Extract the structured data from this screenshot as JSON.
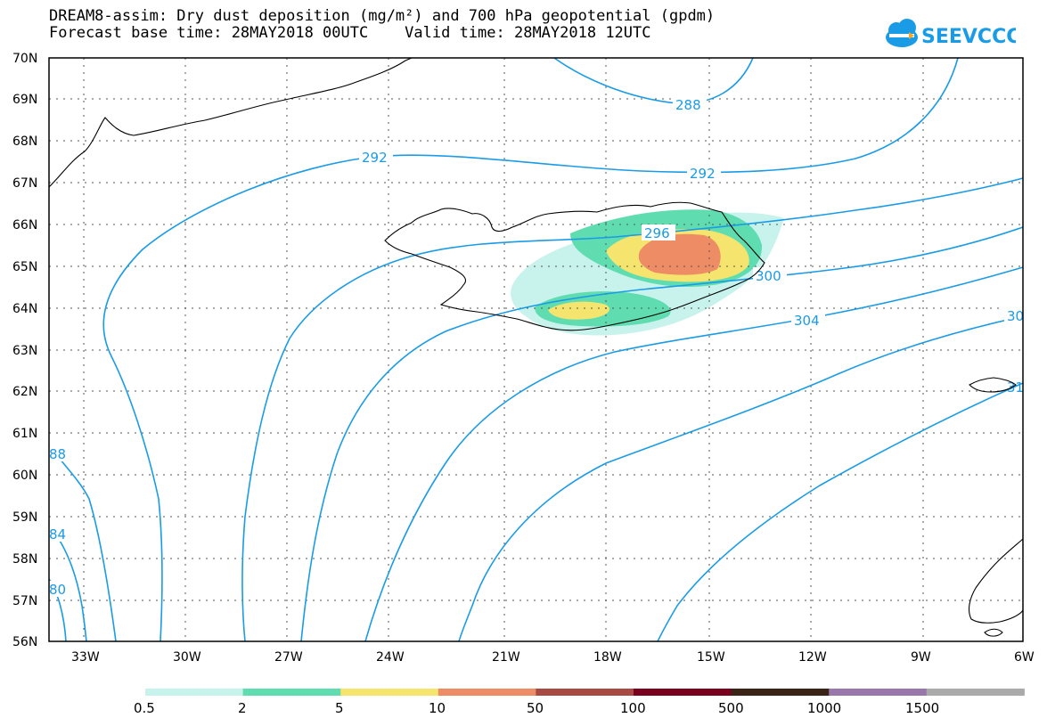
{
  "title_line1": "DREAM8-assim: Dry dust deposition (mg/m²) and 700 hPa geopotential (gpdm)",
  "title_line2": "Forecast base time: 28MAY2018 00UTC    Valid time: 28MAY2018 12UTC",
  "logo_text": "SEEVCCC",
  "lat_labels": [
    "70N",
    "69N",
    "68N",
    "67N",
    "66N",
    "65N",
    "64N",
    "63N",
    "62N",
    "61N",
    "60N",
    "59N",
    "58N",
    "57N",
    "56N"
  ],
  "lon_labels": [
    "33W",
    "30W",
    "27W",
    "24W",
    "21W",
    "18W",
    "15W",
    "12W",
    "9W",
    "6W"
  ],
  "contour_labels": [
    "288",
    "292",
    "292",
    "296",
    "300",
    "304",
    "30",
    "88",
    "84",
    "80",
    "31"
  ],
  "legend": {
    "labels": [
      "0.5",
      "2",
      "5",
      "10",
      "50",
      "100",
      "500",
      "1000",
      "1500"
    ],
    "colors": [
      "#c8f2ec",
      "#5fdcb0",
      "#f5e46e",
      "#ee8c66",
      "#a84a43",
      "#7a0020",
      "#3a2417",
      "#9977aa",
      "#aaaaaa"
    ]
  },
  "colors": {
    "contour": "#1a9be6",
    "frame": "#000000"
  }
}
